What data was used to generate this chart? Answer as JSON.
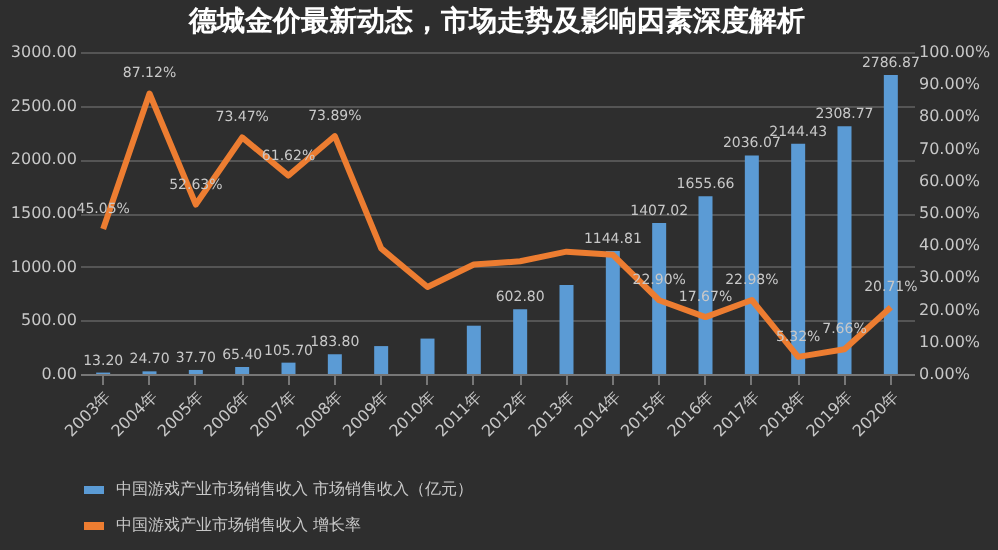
{
  "chart_data": {
    "type": "bar",
    "title": "德城金价最新动态，市场走势及影响因素深度解析",
    "categories": [
      "2003年",
      "2004年",
      "2005年",
      "2006年",
      "2007年",
      "2008年",
      "2009年",
      "2010年",
      "2011年",
      "2012年",
      "2013年",
      "2014年",
      "2015年",
      "2016年",
      "2017年",
      "2018年",
      "2019年",
      "2020年"
    ],
    "series": [
      {
        "name": "中国游戏产业市场销售收入 市场销售收入（亿元）",
        "color": "#5b9bd5",
        "values": [
          13.2,
          24.7,
          37.7,
          65.4,
          105.7,
          183.8,
          260,
          330,
          450,
          602.8,
          830,
          1144.81,
          1407.02,
          1655.66,
          2036.07,
          2144.43,
          2308.77,
          2786.87
        ],
        "value_labels": [
          "13.20",
          "24.70",
          "37.70",
          "65.40",
          "105.70",
          "183.80",
          null,
          null,
          null,
          "602.80",
          null,
          "1144.81",
          "1407.02",
          "1655.66",
          "2036.07",
          "2144.43",
          "2308.77",
          "2786.87"
        ]
      },
      {
        "name": "中国游戏产业市场销售收入 增长率",
        "type": "line",
        "axis": "y2",
        "color": "#ed7d31",
        "values": [
          45.05,
          87.12,
          52.63,
          73.47,
          61.62,
          73.89,
          39,
          27,
          34,
          35,
          38,
          37,
          22.9,
          17.67,
          22.98,
          5.32,
          7.66,
          20.71
        ],
        "value_labels": [
          "45.05%",
          "87.12%",
          "52.63%",
          "73.47%",
          "61.62%",
          "73.89%",
          null,
          null,
          null,
          null,
          null,
          null,
          "22.90%",
          "17.67%",
          "22.98%",
          "5.32%",
          "7.66%",
          "20.71%"
        ]
      }
    ],
    "ylim": [
      0,
      3000
    ],
    "yticks": [
      {
        "value": 0,
        "label": "0.00"
      },
      {
        "value": 500,
        "label": "500.00"
      },
      {
        "value": 1000,
        "label": "1000.00"
      },
      {
        "value": 1500,
        "label": "1500.00"
      },
      {
        "value": 2000,
        "label": "2000.00"
      },
      {
        "value": 2500,
        "label": "2500.00"
      },
      {
        "value": 3000,
        "label": "3000.00"
      }
    ],
    "y2lim": [
      0,
      100
    ],
    "y2ticks": [
      {
        "value": 0,
        "label": "0.00%"
      },
      {
        "value": 10,
        "label": "10.00%"
      },
      {
        "value": 20,
        "label": "20.00%"
      },
      {
        "value": 30,
        "label": "30.00%"
      },
      {
        "value": 40,
        "label": "40.00%"
      },
      {
        "value": 50,
        "label": "50.00%"
      },
      {
        "value": 60,
        "label": "60.00%"
      },
      {
        "value": 70,
        "label": "70.00%"
      },
      {
        "value": 80,
        "label": "80.00%"
      },
      {
        "value": 90,
        "label": "90.00%"
      },
      {
        "value": 100,
        "label": "100.00%"
      }
    ],
    "grid": "y",
    "legend": "bottom"
  }
}
